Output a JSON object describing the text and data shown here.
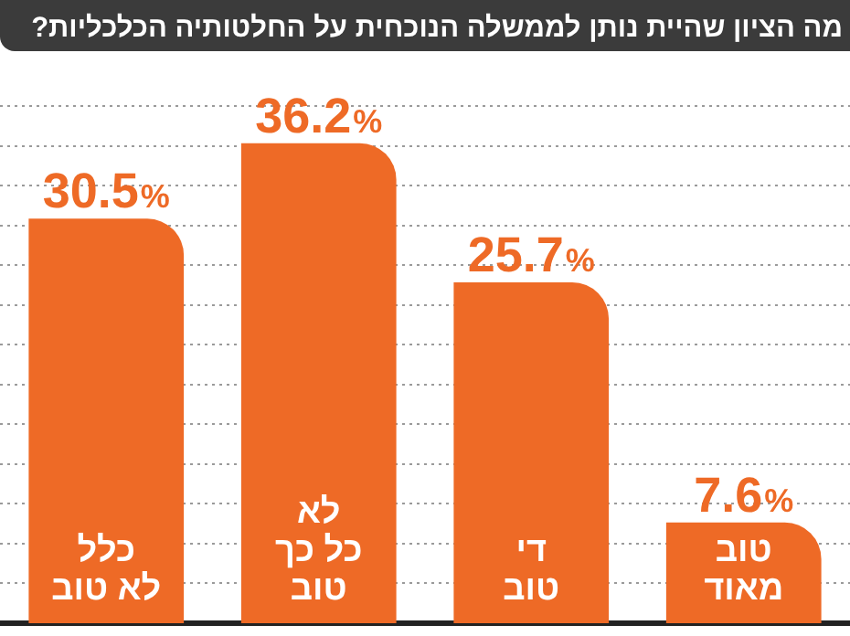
{
  "chart_data": {
    "type": "bar",
    "title": "מה הציון שהיית נותן לממשלה הנוכחית על החלטותיה הכלכליות?",
    "categories": [
      "כלל\nלא טוב",
      "לא\nכל כך\nטוב",
      "די\nטוב",
      "טוב\nמאוד"
    ],
    "values": [
      30.5,
      36.2,
      25.7,
      7.6
    ],
    "color": "#ee6a26",
    "value_labels": [
      "30.5%",
      "36.2%",
      "25.7%",
      "7.6%"
    ],
    "ylim": [
      0,
      39
    ],
    "yticks": [
      {
        "value": 3,
        "label": null
      },
      {
        "value": 6,
        "label": null
      },
      {
        "value": 9,
        "label": null
      },
      {
        "value": 12,
        "label": null
      },
      {
        "value": 15,
        "label": null
      },
      {
        "value": 18,
        "label": null
      },
      {
        "value": 21,
        "label": null
      },
      {
        "value": 24,
        "label": null
      },
      {
        "value": 27,
        "label": null
      },
      {
        "value": 30,
        "label": null
      },
      {
        "value": 33,
        "label": null
      },
      {
        "value": 36,
        "label": null
      },
      {
        "value": 39,
        "label": null
      }
    ],
    "grid": "y",
    "tick_labels": "x"
  }
}
